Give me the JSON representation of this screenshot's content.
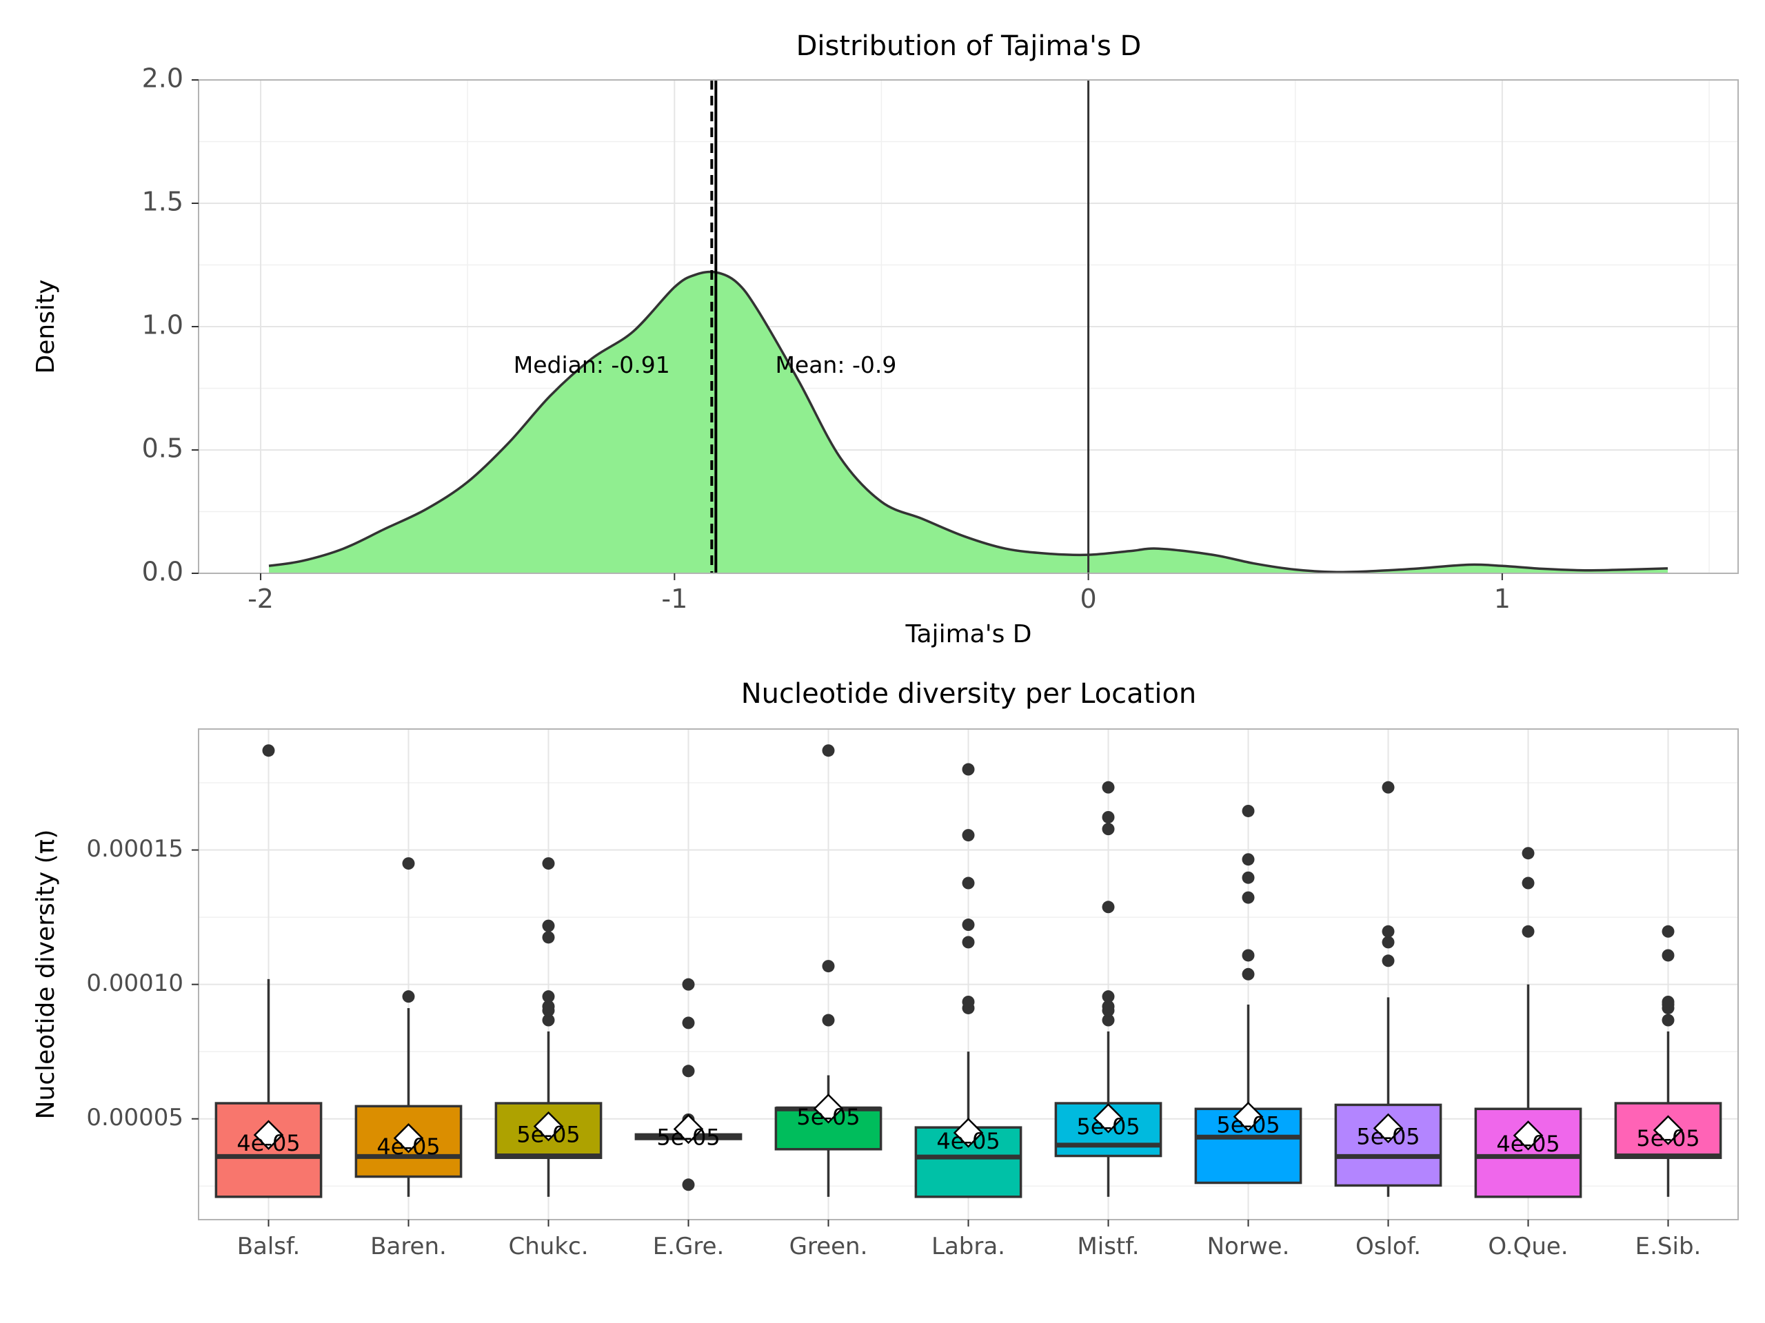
{
  "chart_data": [
    {
      "type": "area",
      "title": "Distribution of Tajima's D",
      "xlabel": "Tajima's D",
      "ylabel": "Density",
      "xlim": [
        -2.15,
        1.57
      ],
      "ylim": [
        0,
        2.0
      ],
      "x_ticks": [
        -2,
        -1,
        0,
        1
      ],
      "x_tick_labels": [
        "-2",
        "-1",
        "0",
        "1"
      ],
      "y_ticks": [
        0,
        0.5,
        1.0,
        1.5,
        2.0
      ],
      "y_tick_labels": [
        "0.0",
        "0.5",
        "1.0",
        "1.5",
        "2.0"
      ],
      "fill_color": "#90EE90",
      "line_color": "#333333",
      "density": {
        "x": [
          -1.98,
          -1.9,
          -1.8,
          -1.7,
          -1.6,
          -1.5,
          -1.4,
          -1.3,
          -1.2,
          -1.1,
          -1.0,
          -0.95,
          -0.9,
          -0.85,
          -0.8,
          -0.7,
          -0.6,
          -0.5,
          -0.4,
          -0.3,
          -0.2,
          -0.1,
          0.0,
          0.1,
          0.17,
          0.3,
          0.4,
          0.5,
          0.6,
          0.7,
          0.8,
          0.92,
          1.0,
          1.1,
          1.2,
          1.3,
          1.4
        ],
        "y": [
          0.03,
          0.05,
          0.1,
          0.18,
          0.26,
          0.37,
          0.53,
          0.72,
          0.87,
          0.98,
          1.16,
          1.21,
          1.22,
          1.18,
          1.07,
          0.78,
          0.47,
          0.29,
          0.22,
          0.15,
          0.1,
          0.08,
          0.075,
          0.09,
          0.1,
          0.075,
          0.04,
          0.015,
          0.005,
          0.01,
          0.02,
          0.035,
          0.03,
          0.018,
          0.012,
          0.015,
          0.02
        ]
      },
      "reference_lines": [
        {
          "name": "median",
          "x": -0.91,
          "style": "dashed"
        },
        {
          "name": "mean",
          "x": -0.9,
          "style": "solid"
        },
        {
          "name": "zero",
          "x": 0,
          "style": "solid"
        }
      ],
      "annotations": [
        {
          "text": "Median: -0.91",
          "x": -1.2,
          "y": 0.84
        },
        {
          "text": "Mean: -0.9",
          "x": -0.61,
          "y": 0.84
        }
      ]
    },
    {
      "type": "box",
      "title": "Nucleotide diversity per Location",
      "xlabel": "",
      "ylabel": "Nucleotide diversity (π)",
      "ylim": [
        1.25e-05,
        0.000195
      ],
      "y_ticks": [
        5e-05,
        0.0001,
        0.00015
      ],
      "y_tick_labels": [
        "0.00005",
        "0.00010",
        "0.00015"
      ],
      "categories": [
        "Balsf.",
        "Baren.",
        "Chukc.",
        "E.Gre.",
        "Green.",
        "Labra.",
        "Mistf.",
        "Norwe.",
        "Oslof.",
        "O.Que.",
        "E.Sib."
      ],
      "boxes": [
        {
          "category": "Balsf.",
          "color": "#F8766D",
          "q1": 2.1e-05,
          "median": 3.6e-05,
          "q3": 5.58e-05,
          "whisker_low": 2.1e-05,
          "whisker_high": 0.000102,
          "mean": 4.4e-05,
          "mean_label": "4e-05",
          "outliers": [
            0.000187
          ]
        },
        {
          "category": "Baren.",
          "color": "#DB8E00",
          "q1": 2.85e-05,
          "median": 3.6e-05,
          "q3": 5.47e-05,
          "whisker_low": 2.1e-05,
          "whisker_high": 9.12e-05,
          "mean": 4.28e-05,
          "mean_label": "4e-05",
          "outliers": [
            9.55e-05,
            0.000145
          ]
        },
        {
          "category": "Chukc.",
          "color": "#AEA200",
          "q1": 3.55e-05,
          "median": 3.62e-05,
          "q3": 5.58e-05,
          "whisker_low": 2.1e-05,
          "whisker_high": 8.25e-05,
          "mean": 4.72e-05,
          "mean_label": "5e-05",
          "outliers": [
            8.67e-05,
            9.03e-05,
            9.18e-05,
            9.55e-05,
            0.0001175,
            0.0001218,
            0.000145
          ]
        },
        {
          "category": "E.Gre.",
          "color": "#64B200",
          "q1": 4.25e-05,
          "median": 4.32e-05,
          "q3": 4.42e-05,
          "whisker_low": 4.25e-05,
          "whisker_high": 4.42e-05,
          "mean": 4.62e-05,
          "mean_label": "5e-05",
          "outliers": [
            2.55e-05,
            4.97e-05,
            6.78e-05,
            8.57e-05,
            0.0001
          ]
        },
        {
          "category": "Green.",
          "color": "#00BD5C",
          "q1": 3.87e-05,
          "median": 5.37e-05,
          "q3": 5.4e-05,
          "whisker_low": 2.1e-05,
          "whisker_high": 6.62e-05,
          "mean": 5.38e-05,
          "mean_label": "5e-05",
          "outliers": [
            8.67e-05,
            0.0001068,
            0.000187
          ]
        },
        {
          "category": "Labra.",
          "color": "#00C1A7",
          "q1": 2.1e-05,
          "median": 3.58e-05,
          "q3": 4.68e-05,
          "whisker_low": 2.1e-05,
          "whisker_high": 7.5e-05,
          "mean": 4.48e-05,
          "mean_label": "4e-05",
          "outliers": [
            9.12e-05,
            9.35e-05,
            0.0001157,
            0.0001222,
            0.0001377,
            0.0001555,
            0.00018
          ]
        },
        {
          "category": "Mistf.",
          "color": "#00BADE",
          "q1": 3.62e-05,
          "median": 4.02e-05,
          "q3": 5.58e-05,
          "whisker_low": 2.1e-05,
          "whisker_high": 8.25e-05,
          "mean": 5.02e-05,
          "mean_label": "5e-05",
          "outliers": [
            8.67e-05,
            9.03e-05,
            9.18e-05,
            9.55e-05,
            0.0001288,
            0.0001578,
            0.0001622,
            0.0001733
          ]
        },
        {
          "category": "Norwe.",
          "color": "#00A6FF",
          "q1": 2.62e-05,
          "median": 4.32e-05,
          "q3": 5.37e-05,
          "whisker_low": 2.62e-05,
          "whisker_high": 9.25e-05,
          "mean": 5.08e-05,
          "mean_label": "5e-05",
          "outliers": [
            0.0001038,
            0.0001108,
            0.0001323,
            0.0001397,
            0.0001465,
            0.0001645
          ]
        },
        {
          "category": "Oslof.",
          "color": "#B385FF",
          "q1": 2.52e-05,
          "median": 3.6e-05,
          "q3": 5.52e-05,
          "whisker_low": 2.1e-05,
          "whisker_high": 9.52e-05,
          "mean": 4.65e-05,
          "mean_label": "5e-05",
          "outliers": [
            0.0001088,
            0.0001157,
            0.0001197,
            0.0001733
          ]
        },
        {
          "category": "O.Que.",
          "color": "#EF67EB",
          "q1": 2.1e-05,
          "median": 3.6e-05,
          "q3": 5.37e-05,
          "whisker_low": 2.1e-05,
          "whisker_high": 0.0001,
          "mean": 4.38e-05,
          "mean_label": "4e-05",
          "outliers": [
            0.0001197,
            0.0001377,
            0.0001488
          ]
        },
        {
          "category": "E.Sib.",
          "color": "#FF63B6",
          "q1": 3.55e-05,
          "median": 3.62e-05,
          "q3": 5.58e-05,
          "whisker_low": 2.1e-05,
          "whisker_high": 8.25e-05,
          "mean": 4.58e-05,
          "mean_label": "5e-05",
          "outliers": [
            8.67e-05,
            9.12e-05,
            9.25e-05,
            9.35e-05,
            0.0001108,
            0.0001197
          ]
        }
      ]
    }
  ]
}
